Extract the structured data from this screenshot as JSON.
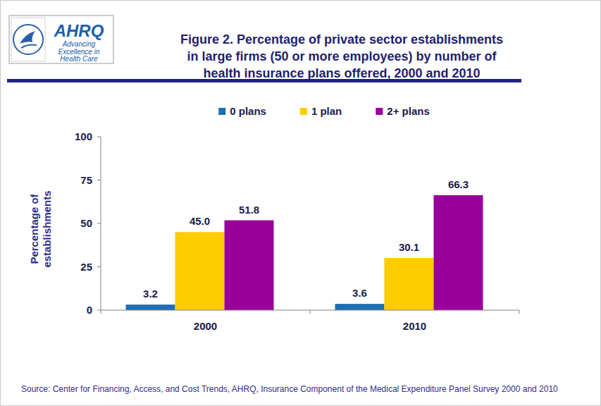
{
  "chart_data": {
    "type": "bar",
    "title": "Figure 2. Percentage of private sector establishments in large firms (50 or more employees) by number of health insurance plans offered, 2000 and 2010",
    "y_label": "Percentage of establishments",
    "source": "Source: Center for Financing, Access, and Cost Trends, AHRQ, Insurance Component of the Medical Expenditure Panel Survey 2000 and 2010",
    "categories": [
      "2000",
      "2010"
    ],
    "series": [
      {
        "name": "0 plans",
        "color": "#1f6db3",
        "values": [
          3.2,
          3.6
        ]
      },
      {
        "name": "1 plan",
        "color": "#ffcc00",
        "values": [
          45.0,
          30.1
        ],
        "value_labels": [
          "45.0",
          "30.1"
        ]
      },
      {
        "name": "2+ plans",
        "color": "#990099",
        "values": [
          51.8,
          66.3
        ]
      }
    ],
    "ylim": [
      0,
      100
    ],
    "yticks": [
      0,
      25,
      50,
      75,
      100
    ],
    "grid": false,
    "legend": "top",
    "data_labels": true
  },
  "logo": {
    "name": "AHRQ",
    "tagline": "Advancing Excellence in Health Care"
  }
}
